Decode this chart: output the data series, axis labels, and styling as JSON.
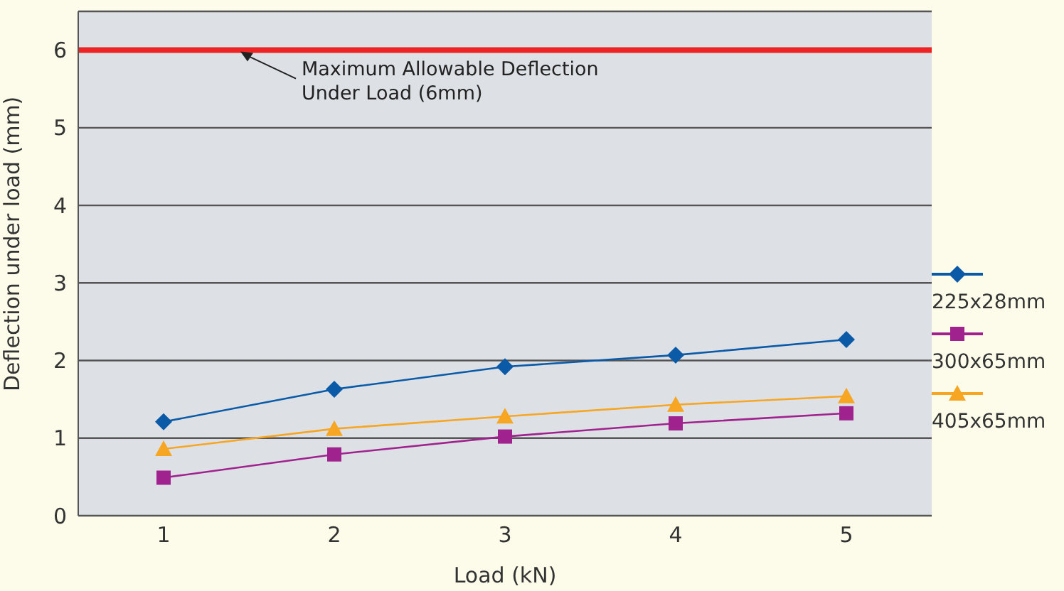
{
  "chart_data": {
    "type": "line",
    "xlabel": "Load (kN)",
    "ylabel": "Deflection under load (mm)",
    "categories": [
      "1",
      "2",
      "3",
      "4",
      "5"
    ],
    "series": [
      {
        "name": "225x28mm",
        "color": "#0a5aa8",
        "marker": "diamond",
        "values": [
          1.21,
          1.63,
          1.92,
          2.07,
          2.27
        ]
      },
      {
        "name": "300x65mm",
        "color": "#a0228e",
        "marker": "square",
        "values": [
          0.49,
          0.79,
          1.02,
          1.19,
          1.32
        ]
      },
      {
        "name": "405x65mm",
        "color": "#f6a623",
        "marker": "triangle",
        "values": [
          0.86,
          1.12,
          1.28,
          1.43,
          1.54
        ]
      }
    ],
    "ylim": [
      0,
      6.5
    ],
    "yticks": [
      0,
      1,
      2,
      3,
      4,
      5,
      6
    ],
    "grid": "y",
    "legend": "right",
    "line_style": "solid",
    "ref_lines": [
      {
        "axis": "y",
        "value": 6,
        "label": "Maximum Allowable Deflection Under Load (6mm)",
        "color": "#ee2424"
      }
    ]
  }
}
